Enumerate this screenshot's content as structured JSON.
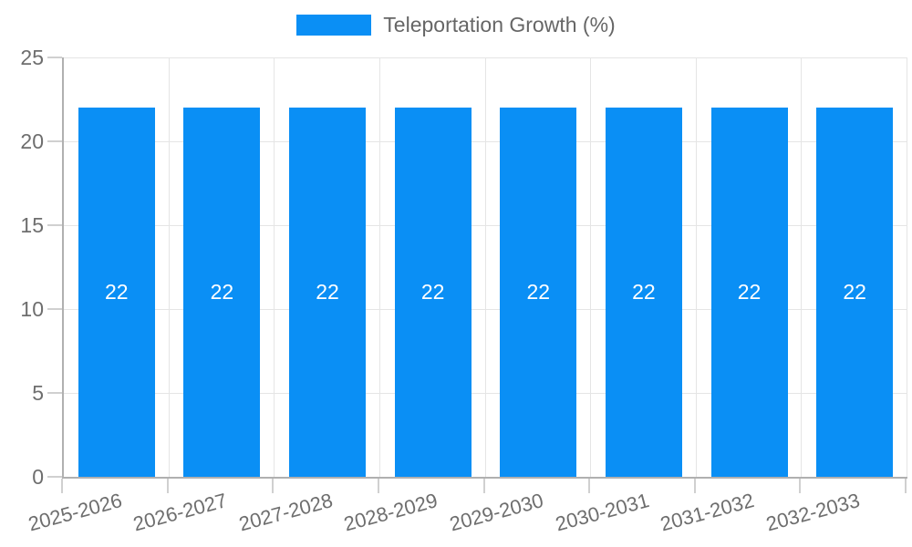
{
  "chart_data": {
    "type": "bar",
    "title": "",
    "categories": [
      "2025-2026",
      "2026-2027",
      "2027-2028",
      "2028-2029",
      "2029-2030",
      "2030-2031",
      "2031-2032",
      "2032-2033"
    ],
    "series": [
      {
        "name": "Teleportation Growth (%)",
        "color": "#0a8ff5",
        "values": [
          22,
          22,
          22,
          22,
          22,
          22,
          22,
          22
        ]
      }
    ],
    "value_labels": [
      "22",
      "22",
      "22",
      "22",
      "22",
      "22",
      "22",
      "22"
    ],
    "xlabel": "",
    "ylabel": "",
    "ylim": [
      0,
      25
    ],
    "yticks": [
      0,
      5,
      10,
      15,
      20,
      25
    ],
    "grid": true,
    "legend_position": "top-center",
    "x_tick_rotation_deg": -15
  },
  "colors": {
    "bar": "#0a8ff5",
    "grid_line": "#e5e5e5",
    "axis_line": "#b0b0b0",
    "tick_mark": "#d0d0d0",
    "tick_text": "#6e6e6e",
    "legend_text": "#666666",
    "bar_value_text": "#ffffff",
    "background": "#ffffff"
  }
}
